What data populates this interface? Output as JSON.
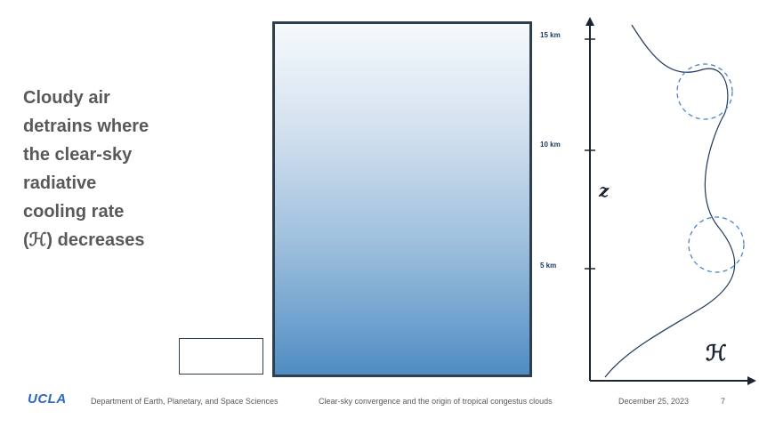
{
  "slide": {
    "heading_lines": [
      "Cloudy air",
      "detrains where",
      "the clear-sky",
      "radiative",
      "cooling rate",
      "(ℋ) decreases"
    ]
  },
  "column": {
    "height_labels": [
      "15 km",
      "10 km",
      "5 km"
    ]
  },
  "profile_chart": {
    "y_axis_label": "z",
    "x_axis_label": "ℋ",
    "line_color": "#1f3a5c",
    "circle_color": "#4a86c5"
  },
  "footer": {
    "logo": "UCLA",
    "department": "Department of Earth, Planetary, and Space Sciences",
    "talk_title": "Clear-sky convergence and the origin of tropical congestus clouds",
    "date": "December 25, 2023",
    "page_number": "7"
  },
  "colors": {
    "heading": "#595959",
    "logo": "#2d68c4",
    "panel_border": "#2e3f50",
    "gradient_top": "#f6f9fc",
    "gradient_bottom": "#4f8bc2"
  }
}
